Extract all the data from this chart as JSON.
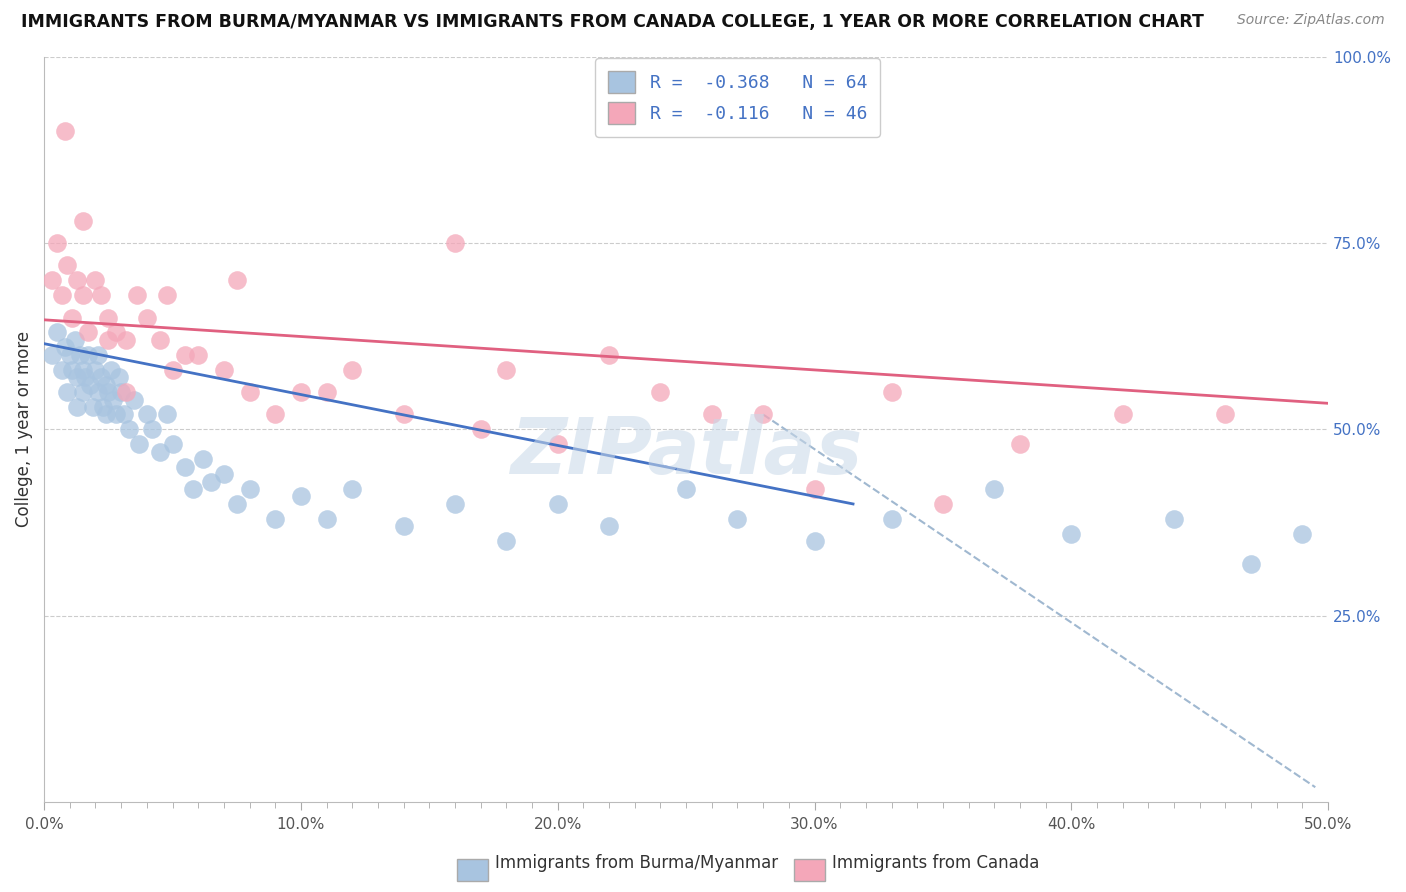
{
  "title": "IMMIGRANTS FROM BURMA/MYANMAR VS IMMIGRANTS FROM CANADA COLLEGE, 1 YEAR OR MORE CORRELATION CHART",
  "source": "Source: ZipAtlas.com",
  "ylabel": "College, 1 year or more",
  "xlim": [
    0.0,
    0.5
  ],
  "ylim": [
    0.0,
    1.0
  ],
  "xtick_labels": [
    "0.0%",
    "",
    "",
    "",
    "",
    "",
    "",
    "",
    "",
    "",
    "10.0%",
    "",
    "",
    "",
    "",
    "",
    "",
    "",
    "",
    "",
    "20.0%",
    "",
    "",
    "",
    "",
    "",
    "",
    "",
    "",
    "",
    "30.0%",
    "",
    "",
    "",
    "",
    "",
    "",
    "",
    "",
    "",
    "40.0%",
    "",
    "",
    "",
    "",
    "",
    "",
    "",
    "",
    "",
    "50.0%"
  ],
  "xtick_vals": [
    0.0,
    0.01,
    0.02,
    0.03,
    0.04,
    0.05,
    0.06,
    0.07,
    0.08,
    0.09,
    0.1,
    0.11,
    0.12,
    0.13,
    0.14,
    0.15,
    0.16,
    0.17,
    0.18,
    0.19,
    0.2,
    0.21,
    0.22,
    0.23,
    0.24,
    0.25,
    0.26,
    0.27,
    0.28,
    0.29,
    0.3,
    0.31,
    0.32,
    0.33,
    0.34,
    0.35,
    0.36,
    0.37,
    0.38,
    0.39,
    0.4,
    0.41,
    0.42,
    0.43,
    0.44,
    0.45,
    0.46,
    0.47,
    0.48,
    0.49,
    0.5
  ],
  "xtick_major_vals": [
    0.0,
    0.1,
    0.2,
    0.3,
    0.4,
    0.5
  ],
  "xtick_major_labels": [
    "0.0%",
    "10.0%",
    "20.0%",
    "30.0%",
    "40.0%",
    "50.0%"
  ],
  "ytick_labels_right": [
    "100.0%",
    "75.0%",
    "50.0%",
    "25.0%"
  ],
  "ytick_vals_right": [
    1.0,
    0.75,
    0.5,
    0.25
  ],
  "legend_text_blue": "R =  -0.368   N = 64",
  "legend_text_pink": "R =  -0.116   N = 46",
  "legend_label_blue": "Immigrants from Burma/Myanmar",
  "legend_label_pink": "Immigrants from Canada",
  "blue_color": "#a8c4e0",
  "pink_color": "#f4a7b9",
  "blue_line_color": "#4472c4",
  "pink_line_color": "#e06080",
  "diag_line_color": "#a0b8d0",
  "watermark": "ZIPatlas",
  "blue_scatter_x": [
    0.003,
    0.005,
    0.007,
    0.008,
    0.009,
    0.01,
    0.011,
    0.012,
    0.013,
    0.013,
    0.014,
    0.015,
    0.015,
    0.016,
    0.017,
    0.018,
    0.019,
    0.02,
    0.021,
    0.021,
    0.022,
    0.023,
    0.024,
    0.024,
    0.025,
    0.026,
    0.027,
    0.028,
    0.029,
    0.03,
    0.031,
    0.033,
    0.035,
    0.037,
    0.04,
    0.042,
    0.045,
    0.048,
    0.05,
    0.055,
    0.058,
    0.062,
    0.065,
    0.07,
    0.075,
    0.08,
    0.09,
    0.1,
    0.11,
    0.12,
    0.14,
    0.16,
    0.18,
    0.2,
    0.22,
    0.25,
    0.27,
    0.3,
    0.33,
    0.37,
    0.4,
    0.44,
    0.47,
    0.49
  ],
  "blue_scatter_y": [
    0.6,
    0.63,
    0.58,
    0.61,
    0.55,
    0.6,
    0.58,
    0.62,
    0.57,
    0.53,
    0.6,
    0.58,
    0.55,
    0.57,
    0.6,
    0.56,
    0.53,
    0.58,
    0.55,
    0.6,
    0.57,
    0.53,
    0.56,
    0.52,
    0.55,
    0.58,
    0.54,
    0.52,
    0.57,
    0.55,
    0.52,
    0.5,
    0.54,
    0.48,
    0.52,
    0.5,
    0.47,
    0.52,
    0.48,
    0.45,
    0.42,
    0.46,
    0.43,
    0.44,
    0.4,
    0.42,
    0.38,
    0.41,
    0.38,
    0.42,
    0.37,
    0.4,
    0.35,
    0.4,
    0.37,
    0.42,
    0.38,
    0.35,
    0.38,
    0.42,
    0.36,
    0.38,
    0.32,
    0.36
  ],
  "pink_scatter_x": [
    0.003,
    0.005,
    0.007,
    0.009,
    0.011,
    0.013,
    0.015,
    0.017,
    0.02,
    0.022,
    0.025,
    0.028,
    0.032,
    0.036,
    0.04,
    0.045,
    0.05,
    0.06,
    0.07,
    0.08,
    0.09,
    0.11,
    0.14,
    0.17,
    0.2,
    0.24,
    0.28,
    0.33,
    0.38,
    0.42,
    0.46,
    0.3,
    0.35,
    0.22,
    0.26,
    0.18,
    0.16,
    0.12,
    0.1,
    0.055,
    0.032,
    0.015,
    0.008,
    0.025,
    0.048,
    0.075
  ],
  "pink_scatter_y": [
    0.7,
    0.75,
    0.68,
    0.72,
    0.65,
    0.7,
    0.68,
    0.63,
    0.7,
    0.68,
    0.65,
    0.63,
    0.62,
    0.68,
    0.65,
    0.62,
    0.58,
    0.6,
    0.58,
    0.55,
    0.52,
    0.55,
    0.52,
    0.5,
    0.48,
    0.55,
    0.52,
    0.55,
    0.48,
    0.52,
    0.52,
    0.42,
    0.4,
    0.6,
    0.52,
    0.58,
    0.75,
    0.58,
    0.55,
    0.6,
    0.55,
    0.78,
    0.9,
    0.62,
    0.68,
    0.7
  ],
  "blue_line_x": [
    0.0,
    0.315
  ],
  "blue_line_y": [
    0.615,
    0.4
  ],
  "pink_line_x": [
    0.0,
    0.5
  ],
  "pink_line_y": [
    0.647,
    0.535
  ],
  "diag_line_x": [
    0.28,
    0.495
  ],
  "diag_line_y": [
    0.52,
    0.02
  ],
  "background_color": "#ffffff",
  "grid_color": "#cccccc"
}
